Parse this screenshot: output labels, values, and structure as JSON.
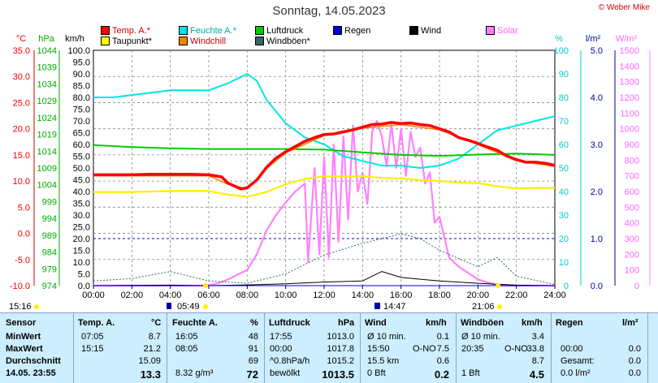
{
  "title": "Sonntag, 14.05.2023",
  "credit": "© Weber Mike",
  "legend": [
    {
      "label": "Temp. A.*",
      "color": "#ff0000"
    },
    {
      "label": "Feuchte A.*",
      "color": "#00e5e5"
    },
    {
      "label": "Luftdruck",
      "color": "#00cc00"
    },
    {
      "label": "Regen",
      "color": "#0000cc"
    },
    {
      "label": "Wind",
      "color": "#000000"
    },
    {
      "label": "Solar",
      "color": "#ff80ff"
    },
    {
      "label": "Taupunkt*",
      "color": "#ffff00"
    },
    {
      "label": "Windchill",
      "color": "#ff8000"
    },
    {
      "label": "Windböen*",
      "color": "#336666"
    }
  ],
  "axis_headers": {
    "temp": "°C",
    "hpa": "hPa",
    "kmh": "km/h",
    "pct": "%",
    "rain": "l/m²",
    "solar": "W/m²"
  },
  "temp_ticks": [
    "35.0",
    "30.0",
    "25.0",
    "20.0",
    "15.0",
    "10.0",
    "5.0",
    "0.0",
    "-5.0",
    "-10.0"
  ],
  "hpa_ticks": [
    "1044",
    "1039",
    "1034",
    "1029",
    "1024",
    "1019",
    "1014",
    "1009",
    "1004",
    "999",
    "994",
    "989",
    "984",
    "979",
    "974"
  ],
  "kmh_ticks": [
    "100.0",
    "95.0",
    "90.0",
    "85.0",
    "80.0",
    "75.0",
    "70.0",
    "65.0",
    "60.0",
    "55.0",
    "50.0",
    "45.0",
    "40.0",
    "35.0",
    "30.0",
    "25.0",
    "20.0",
    "15.0",
    "10.0",
    "5.0",
    "0.0"
  ],
  "pct_ticks": [
    "100",
    "90",
    "80",
    "70",
    "60",
    "50",
    "40",
    "30",
    "20",
    "10",
    "0"
  ],
  "rain_ticks": [
    "5.0",
    "4.0",
    "3.0",
    "2.0",
    "1.0",
    "0.0"
  ],
  "solar_ticks": [
    "1500",
    "1400",
    "1300",
    "1200",
    "1100",
    "1000",
    "900",
    "800",
    "700",
    "600",
    "500",
    "400",
    "300",
    "200",
    "100",
    "0"
  ],
  "x_ticks": [
    "00:00",
    "02:00",
    "04:00",
    "06:00",
    "08:00",
    "10:00",
    "12:00",
    "14:00",
    "16:00",
    "18:00",
    "20:00",
    "22:00",
    "24:00"
  ],
  "time_marks": {
    "t1": "15:16",
    "t2": "05:49",
    "t3": "14:47",
    "t4": "21:06"
  },
  "chart_data": {
    "type": "line",
    "x_label": "time",
    "xlim": [
      "00:00",
      "24:00"
    ],
    "axes": {
      "temp_c": [
        -10,
        35
      ],
      "pressure_hpa": [
        974,
        1046
      ],
      "wind_kmh": [
        0,
        100
      ],
      "humidity_pct": [
        0,
        100
      ],
      "rain_l_m2": [
        0,
        5
      ],
      "solar_w_m2": [
        0,
        1500
      ]
    },
    "grid": true,
    "series": [
      {
        "name": "Temp. A.*",
        "unit": "°C",
        "x": [
          "00:00",
          "01:00",
          "02:00",
          "03:00",
          "04:00",
          "05:00",
          "06:00",
          "06:40",
          "07:00",
          "07:40",
          "08:00",
          "08:30",
          "09:00",
          "09:30",
          "10:00",
          "10:30",
          "11:00",
          "11:30",
          "12:00",
          "12:30",
          "13:00",
          "13:30",
          "14:00",
          "14:30",
          "15:00",
          "15:30",
          "16:00",
          "16:30",
          "17:00",
          "17:30",
          "18:00",
          "18:30",
          "19:00",
          "19:30",
          "20:00",
          "20:30",
          "21:00",
          "21:30",
          "22:00",
          "22:30",
          "23:00",
          "23:30",
          "24:00"
        ],
        "y": [
          11.2,
          11.2,
          11.2,
          11.3,
          11.3,
          11.3,
          11.2,
          10.8,
          9.6,
          8.5,
          8.7,
          10.2,
          12.6,
          14.4,
          15.6,
          16.6,
          17.6,
          18.3,
          18.9,
          19.0,
          19.4,
          19.8,
          20.3,
          20.8,
          20.9,
          21.2,
          21.0,
          21.1,
          20.8,
          20.6,
          20.0,
          19.4,
          18.3,
          17.8,
          17.2,
          16.5,
          15.9,
          14.8,
          14.1,
          13.6,
          13.6,
          13.4,
          13.0
        ]
      },
      {
        "name": "Feuchte A.*",
        "unit": "%",
        "x": [
          "00:00",
          "01:00",
          "02:00",
          "03:00",
          "04:00",
          "05:00",
          "06:00",
          "07:00",
          "07:30",
          "08:00",
          "08:30",
          "09:00",
          "10:00",
          "11:00",
          "12:00",
          "13:00",
          "14:00",
          "15:00",
          "16:00",
          "17:00",
          "18:00",
          "19:00",
          "19:30",
          "20:00",
          "20:30",
          "21:00",
          "22:00",
          "23:00",
          "24:00"
        ],
        "y": [
          80,
          80,
          81,
          82,
          83,
          83,
          83,
          86,
          88,
          90,
          87,
          79,
          69,
          63,
          60,
          55,
          53,
          51,
          51,
          50,
          51,
          54,
          57,
          60,
          63,
          66,
          68,
          70,
          72
        ]
      },
      {
        "name": "Luftdruck",
        "unit": "hPa",
        "x": [
          "00:00",
          "02:00",
          "04:00",
          "06:00",
          "08:00",
          "10:00",
          "12:00",
          "14:00",
          "16:00",
          "18:00",
          "20:00",
          "22:00",
          "24:00"
        ],
        "y": [
          1017.0,
          1016.4,
          1016.0,
          1015.8,
          1015.8,
          1015.8,
          1015.6,
          1014.8,
          1014.0,
          1013.7,
          1014.1,
          1014.4,
          1014.0
        ]
      },
      {
        "name": "Taupunkt*",
        "unit": "°C",
        "x": [
          "00:00",
          "02:00",
          "04:00",
          "06:00",
          "07:00",
          "08:00",
          "09:00",
          "10:00",
          "11:00",
          "12:00",
          "13:00",
          "14:00",
          "15:00",
          "16:00",
          "17:00",
          "18:00",
          "19:00",
          "20:00",
          "21:00",
          "22:00",
          "23:00",
          "24:00"
        ],
        "y": [
          7.9,
          7.9,
          8.1,
          8.1,
          7.4,
          7.0,
          7.9,
          9.4,
          10.4,
          10.9,
          10.9,
          10.9,
          10.6,
          10.5,
          10.2,
          10.0,
          9.7,
          9.6,
          9.0,
          8.6,
          8.7,
          8.7
        ]
      },
      {
        "name": "Windchill",
        "unit": "°C",
        "x": [
          "00:00",
          "06:00",
          "07:00",
          "08:00",
          "09:00",
          "10:00",
          "12:00",
          "14:00",
          "16:00",
          "18:00",
          "20:00",
          "22:00",
          "24:00"
        ],
        "y": [
          11.0,
          11.0,
          9.4,
          8.5,
          12.4,
          15.4,
          18.7,
          20.1,
          20.8,
          19.8,
          17.0,
          13.9,
          12.8
        ]
      },
      {
        "name": "Regen",
        "unit": "l/m²",
        "x": [
          "00:00",
          "24:00"
        ],
        "y": [
          0.0,
          0.0
        ]
      },
      {
        "name": "Wind",
        "unit": "km/h",
        "x": [
          "00:00",
          "04:00",
          "06:00",
          "08:00",
          "10:00",
          "12:00",
          "14:00",
          "15:00",
          "16:00",
          "18:00",
          "20:00",
          "22:00",
          "24:00"
        ],
        "y": [
          0.0,
          0.2,
          0.0,
          0.3,
          0.8,
          1.5,
          2.0,
          6.0,
          3.5,
          2.0,
          1.0,
          0.2,
          0.0
        ]
      },
      {
        "name": "Windböen*",
        "unit": "km/h",
        "x": [
          "00:00",
          "02:00",
          "04:00",
          "06:00",
          "08:00",
          "10:00",
          "12:00",
          "14:00",
          "16:00",
          "17:00",
          "18:00",
          "20:00",
          "21:00",
          "22:00",
          "24:00"
        ],
        "y": [
          2.0,
          3.0,
          6.0,
          2.0,
          1.0,
          5.0,
          13.0,
          18.0,
          22.0,
          20.0,
          15.0,
          8.0,
          12.0,
          4.0,
          0.5
        ]
      },
      {
        "name": "Solar",
        "unit": "W/m²",
        "x": [
          "00:00",
          "05:50",
          "06:30",
          "07:00",
          "07:40",
          "08:00",
          "08:30",
          "09:00",
          "09:30",
          "10:00",
          "10:30",
          "11:00",
          "11:10",
          "11:30",
          "11:45",
          "12:00",
          "12:15",
          "12:30",
          "12:45",
          "13:00",
          "13:15",
          "13:30",
          "13:45",
          "14:00",
          "14:15",
          "14:30",
          "14:45",
          "15:00",
          "15:15",
          "15:30",
          "15:45",
          "16:00",
          "16:15",
          "16:30",
          "16:45",
          "17:00",
          "17:15",
          "17:30",
          "17:45",
          "18:00",
          "18:30",
          "19:00",
          "19:30",
          "20:00",
          "20:30",
          "21:06",
          "24:00"
        ],
        "y": [
          0,
          0,
          15,
          40,
          80,
          100,
          200,
          350,
          450,
          530,
          600,
          650,
          150,
          750,
          200,
          820,
          180,
          900,
          280,
          950,
          420,
          1020,
          600,
          720,
          520,
          980,
          1050,
          950,
          760,
          1030,
          750,
          1000,
          700,
          980,
          820,
          880,
          650,
          720,
          400,
          440,
          180,
          120,
          80,
          40,
          20,
          0,
          0
        ]
      }
    ]
  },
  "table": {
    "headers": {
      "sensor": "Sensor",
      "temp": "Temp. A.",
      "temp_unit": "°C",
      "hum": "Feuchte A.",
      "hum_unit": "%",
      "press": "Luftdruck",
      "press_unit": "hPa",
      "wind": "Wind",
      "wind_unit": "km/h",
      "gust": "Windböen",
      "gust_unit": "km/h",
      "rain": "Regen",
      "rain_unit": "l/m²"
    },
    "rows": [
      {
        "label": "MinWert",
        "temp_t": "07:05",
        "temp_v": "8.7",
        "hum_t": "16:05",
        "hum_v": "48",
        "press_t": "17:55",
        "press_v": "1013.0",
        "wind_a": "Ø 10 min.",
        "wind_b": "",
        "wind_v": "0.1",
        "gust_a": "Ø 10 min.",
        "gust_b": "",
        "gust_v": "3.4",
        "rain_a": "",
        "rain_v": ""
      },
      {
        "label": "MaxWert",
        "temp_t": "15:15",
        "temp_v": "21.2",
        "hum_t": "08:05",
        "hum_v": "91",
        "press_t": "00:00",
        "press_v": "1017.8",
        "wind_a": "15:50",
        "wind_b": "O-NO",
        "wind_v": "7.5",
        "gust_a": "20:35",
        "gust_b": "O-NO",
        "gust_v": "33.8",
        "rain_a": "00:00",
        "rain_v": "0.0"
      },
      {
        "label": "Durchschnitt",
        "temp_t": "",
        "temp_v": "15.09",
        "hum_t": "",
        "hum_v": "69",
        "press_t": "^0.8hPa/h",
        "press_v": "1015.2",
        "wind_a": "15.5 km",
        "wind_b": "",
        "wind_v": "0.6",
        "gust_a": "",
        "gust_b": "",
        "gust_v": "8.7",
        "rain_a": "Gesamt:",
        "rain_v": "0.0"
      },
      {
        "label": "14.05. 23:55",
        "temp_t": "",
        "temp_v": "13.3",
        "hum_t": "8.32 g/m³",
        "hum_v": "72",
        "press_t": "bewölkt",
        "press_v": "1013.5",
        "wind_a": "0 Bft",
        "wind_b": "",
        "wind_v": "0.2",
        "gust_a": "1 Bft",
        "gust_b": "",
        "gust_v": "4.5",
        "rain_a": "0.0 l/m²",
        "rain_v": "0.0"
      }
    ]
  }
}
